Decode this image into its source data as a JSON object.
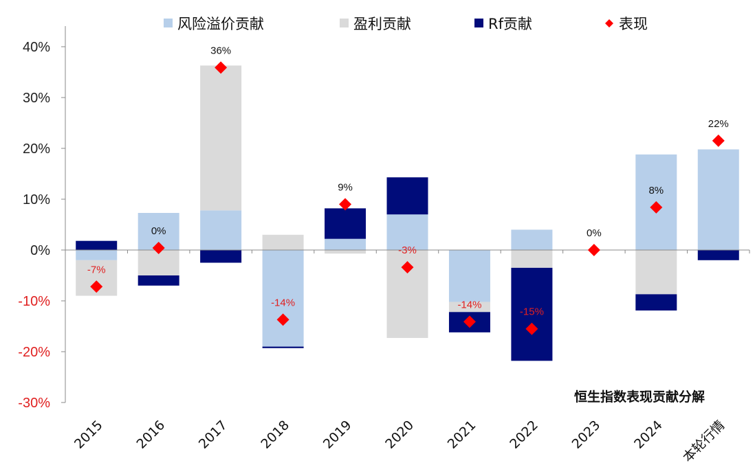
{
  "chart_data": {
    "type": "bar",
    "stacked": true,
    "title": "恒生指数表现贡献分解",
    "xlabel": "",
    "ylabel": "",
    "ylim": [
      -0.3,
      0.4
    ],
    "yticks": [
      -0.3,
      -0.2,
      -0.1,
      0.0,
      0.1,
      0.2,
      0.3,
      0.4
    ],
    "ytick_labels": [
      "-30%",
      "-20%",
      "-10%",
      "0%",
      "10%",
      "20%",
      "30%",
      "40%"
    ],
    "grid": false,
    "legend_position": "top",
    "categories": [
      "2015",
      "2016",
      "2017",
      "2018",
      "2019",
      "2020",
      "2021",
      "2022",
      "2023",
      "2024",
      "本轮行情"
    ],
    "series": [
      {
        "name": "风险溢价贡献",
        "kind": "bar",
        "color": "#b7cfea",
        "values": [
          -0.02,
          0.073,
          0.078,
          -0.19,
          0.022,
          0.07,
          -0.102,
          0.04,
          0.0,
          0.188,
          0.198
        ]
      },
      {
        "name": "盈利贡献",
        "kind": "bar",
        "color": "#dadada",
        "values": [
          -0.07,
          -0.05,
          0.285,
          0.03,
          -0.007,
          -0.173,
          -0.02,
          -0.035,
          0.0,
          -0.087,
          0.0
        ]
      },
      {
        "name": "Rf贡献",
        "kind": "bar",
        "color": "#000c7a",
        "values": [
          0.018,
          -0.02,
          -0.025,
          -0.003,
          0.06,
          0.073,
          -0.04,
          -0.183,
          0.0,
          -0.032,
          -0.02
        ]
      },
      {
        "name": "表现",
        "kind": "marker",
        "color": "#ff0000",
        "values": [
          -0.072,
          0.004,
          0.359,
          -0.137,
          0.09,
          -0.034,
          -0.141,
          -0.155,
          0.0,
          0.084,
          0.215
        ],
        "labels": [
          "-7%",
          "0%",
          "36%",
          "-14%",
          "9%",
          "-3%",
          "-14%",
          "-15%",
          "0%",
          "8%",
          "22%"
        ]
      }
    ]
  }
}
